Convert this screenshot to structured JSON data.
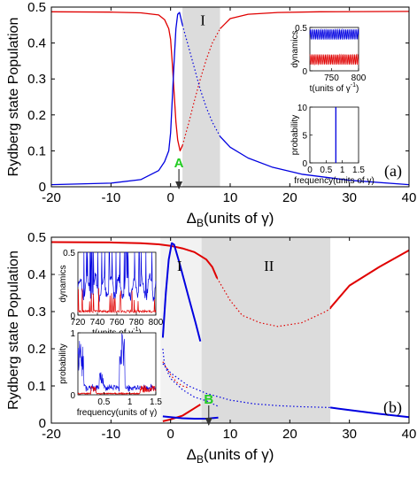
{
  "chart_data": [
    {
      "type": "line",
      "panel_label": "(a)",
      "xlabel_main": "Δ",
      "xlabel_sub": "B",
      "xlabel_rest": "(units of γ)",
      "ylabel": "Rydberg state Population",
      "xlim": [
        -20,
        40
      ],
      "ylim": [
        0,
        0.5
      ],
      "xticks": [
        "-20",
        "-10",
        "0",
        "10",
        "20",
        "30",
        "40"
      ],
      "yticks": [
        "0",
        "0.1",
        "0.2",
        "0.3",
        "0.4",
        "0.5"
      ],
      "region_labels": [
        {
          "text": "I",
          "x": 5.4,
          "y": 0.45
        }
      ],
      "shaded_regions": [
        {
          "x0": 2.0,
          "x1": 8.3,
          "color": "#dcdcdc"
        }
      ],
      "marker": {
        "text": "A",
        "x": 1.4,
        "color": "#22cc22"
      },
      "series": [
        {
          "color": "#e00000",
          "style": "solid",
          "points": [
            [
              -20,
              0.487
            ],
            [
              -10,
              0.486
            ],
            [
              -5,
              0.484
            ],
            [
              -2,
              0.478
            ],
            [
              -1,
              0.465
            ],
            [
              -0.3,
              0.44
            ],
            [
              0,
              0.41
            ],
            [
              0.3,
              0.34
            ],
            [
              0.6,
              0.26
            ],
            [
              0.9,
              0.18
            ],
            [
              1.2,
              0.13
            ],
            [
              1.6,
              0.1
            ],
            [
              2.0,
              0.115
            ]
          ]
        },
        {
          "color": "#e00000",
          "style": "dotted",
          "points": [
            [
              2.0,
              0.115
            ],
            [
              3,
              0.175
            ],
            [
              4,
              0.24
            ],
            [
              5,
              0.3
            ],
            [
              6,
              0.355
            ],
            [
              7,
              0.4
            ],
            [
              8.3,
              0.44
            ]
          ]
        },
        {
          "color": "#e00000",
          "style": "solid",
          "points": [
            [
              8.3,
              0.44
            ],
            [
              10,
              0.468
            ],
            [
              13,
              0.48
            ],
            [
              18,
              0.485
            ],
            [
              25,
              0.487
            ],
            [
              40,
              0.488
            ]
          ]
        },
        {
          "color": "#0000e0",
          "style": "solid",
          "points": [
            [
              -20,
              0.006
            ],
            [
              -10,
              0.01
            ],
            [
              -5,
              0.02
            ],
            [
              -2,
              0.045
            ],
            [
              -1,
              0.07
            ],
            [
              -0.3,
              0.1
            ],
            [
              0,
              0.15
            ],
            [
              0.3,
              0.25
            ],
            [
              0.6,
              0.35
            ],
            [
              0.9,
              0.44
            ],
            [
              1.2,
              0.48
            ],
            [
              1.5,
              0.485
            ],
            [
              2.0,
              0.45
            ]
          ]
        },
        {
          "color": "#0000e0",
          "style": "dotted",
          "points": [
            [
              2.0,
              0.45
            ],
            [
              3,
              0.39
            ],
            [
              4,
              0.33
            ],
            [
              5,
              0.27
            ],
            [
              6,
              0.22
            ],
            [
              7,
              0.18
            ],
            [
              8.3,
              0.14
            ]
          ]
        },
        {
          "color": "#0000e0",
          "style": "solid",
          "points": [
            [
              8.3,
              0.14
            ],
            [
              10,
              0.11
            ],
            [
              13,
              0.08
            ],
            [
              17,
              0.055
            ],
            [
              22,
              0.035
            ],
            [
              30,
              0.018
            ],
            [
              40,
              0.006
            ]
          ]
        }
      ],
      "insets": [
        {
          "name": "dynamics",
          "ylabel": "dynamics",
          "xlabel": "t(units of γ",
          "xlabel_sup": "-1",
          "xlabel_close": ")",
          "xlim": [
            710,
            800
          ],
          "ylim": [
            0,
            0.5
          ],
          "xticks": [
            "750",
            "800"
          ],
          "yticks": [
            "0",
            "0.5"
          ]
        },
        {
          "name": "probability",
          "ylabel": "probability",
          "xlabel": "frequency(units of",
          "xlabel_gamma": "γ",
          "xlabel_close": ")",
          "xlim": [
            0,
            1.5
          ],
          "ylim": [
            0,
            10
          ],
          "xticks": [
            "0",
            "0.5",
            "1",
            "1.5"
          ],
          "yticks": [
            "0",
            "5",
            "10"
          ],
          "peak": {
            "x": 0.8,
            "y": 10
          }
        }
      ]
    },
    {
      "type": "line",
      "panel_label": "(b)",
      "xlabel_main": "Δ",
      "xlabel_sub": "B",
      "xlabel_rest": "(units of γ)",
      "ylabel": "Rydberg state Population",
      "xlim": [
        -20,
        40
      ],
      "ylim": [
        0,
        0.5
      ],
      "xticks": [
        "-20",
        "-10",
        "0",
        "10",
        "20",
        "30",
        "40"
      ],
      "yticks": [
        "0",
        "0.1",
        "0.2",
        "0.3",
        "0.4",
        "0.5"
      ],
      "region_labels": [
        {
          "text": "I",
          "x": 1.5,
          "y": 0.41
        },
        {
          "text": "II",
          "x": 16.5,
          "y": 0.41
        }
      ],
      "shaded_regions": [
        {
          "x0": -1.7,
          "x1": 5.2,
          "color": "#f2f2f2"
        },
        {
          "x0": 5.2,
          "x1": 26.8,
          "color": "#dcdcdc"
        }
      ],
      "marker": {
        "text": "B",
        "x": 6.4,
        "color": "#22cc22"
      },
      "series": [
        {
          "color": "#e00000",
          "style": "solid",
          "points": [
            [
              -20,
              0.487
            ],
            [
              -10,
              0.486
            ],
            [
              -5,
              0.484
            ],
            [
              -2,
              0.481
            ],
            [
              0,
              0.477
            ],
            [
              2,
              0.47
            ],
            [
              4,
              0.46
            ],
            [
              6,
              0.44
            ],
            [
              7,
              0.42
            ],
            [
              7.8,
              0.39
            ]
          ]
        },
        {
          "color": "#e00000",
          "style": "dotted",
          "points": [
            [
              -1.3,
              0.165
            ],
            [
              0,
              0.13
            ],
            [
              1,
              0.11
            ],
            [
              2,
              0.1
            ],
            [
              3,
              0.095
            ]
          ]
        },
        {
          "color": "#e00000",
          "style": "dotted",
          "points": [
            [
              7.8,
              0.39
            ],
            [
              10,
              0.33
            ],
            [
              12,
              0.29
            ],
            [
              15,
              0.27
            ],
            [
              18,
              0.26
            ],
            [
              22,
              0.27
            ],
            [
              26,
              0.3
            ],
            [
              27,
              0.31
            ]
          ]
        },
        {
          "color": "#e00000",
          "style": "solid",
          "points": [
            [
              -1.3,
              0.005
            ],
            [
              0,
              0.01
            ],
            [
              2,
              0.02
            ],
            [
              3,
              0.03
            ],
            [
              4,
              0.04
            ],
            [
              5,
              0.05
            ]
          ]
        },
        {
          "color": "#e00000",
          "style": "solid",
          "points": [
            [
              26.8,
              0.31
            ],
            [
              30,
              0.37
            ],
            [
              35,
              0.42
            ],
            [
              40,
              0.465
            ]
          ]
        },
        {
          "color": "#0000e0",
          "style": "solid",
          "points": [
            [
              -1.3,
              0.23
            ],
            [
              -0.8,
              0.35
            ],
            [
              -0.3,
              0.44
            ],
            [
              0.2,
              0.484
            ],
            [
              0.6,
              0.48
            ],
            [
              1.5,
              0.43
            ],
            [
              3,
              0.34
            ],
            [
              4.2,
              0.27
            ],
            [
              5,
              0.22
            ]
          ]
        },
        {
          "color": "#0000e0",
          "style": "dotted",
          "points": [
            [
              -1.3,
              0.2
            ],
            [
              -1,
              0.155
            ],
            [
              0,
              0.12
            ],
            [
              2,
              0.09
            ],
            [
              4,
              0.07
            ],
            [
              6,
              0.06
            ],
            [
              8,
              0.045
            ]
          ]
        },
        {
          "color": "#0000e0",
          "style": "dotted",
          "points": [
            [
              -1.3,
              0.16
            ],
            [
              0,
              0.135
            ],
            [
              3,
              0.1
            ],
            [
              6,
              0.08
            ],
            [
              10,
              0.062
            ],
            [
              14,
              0.052
            ],
            [
              18,
              0.047
            ],
            [
              22,
              0.044
            ],
            [
              26.8,
              0.042
            ]
          ]
        },
        {
          "color": "#0000e0",
          "style": "solid",
          "points": [
            [
              -1.3,
              0.018
            ],
            [
              0,
              0.016
            ],
            [
              2,
              0.013
            ],
            [
              4,
              0.012
            ],
            [
              6,
              0.012
            ],
            [
              8,
              0.015
            ]
          ]
        },
        {
          "color": "#0000e0",
          "style": "solid",
          "points": [
            [
              26.8,
              0.042
            ],
            [
              30,
              0.035
            ],
            [
              35,
              0.025
            ],
            [
              40,
              0.016
            ]
          ]
        }
      ],
      "insets": [
        {
          "name": "dynamics",
          "ylabel": "dynamics",
          "xlabel": "t(units of γ",
          "xlabel_sup": "-1",
          "xlabel_close": ")",
          "xlim": [
            720,
            800
          ],
          "ylim": [
            0,
            0.5
          ],
          "xticks": [
            "720",
            "740",
            "760",
            "780",
            "800"
          ],
          "yticks": [
            "0",
            "0.5"
          ]
        },
        {
          "name": "probability",
          "ylabel": "probability",
          "xlabel": "frequency(units of",
          "xlabel_gamma": "γ",
          "xlabel_close": ")",
          "xlim": [
            0,
            1.5
          ],
          "ylim": [
            0,
            1
          ],
          "xticks": [
            "0.5",
            "1",
            "1.5"
          ],
          "yticks": [
            "0",
            "1"
          ]
        }
      ]
    }
  ]
}
